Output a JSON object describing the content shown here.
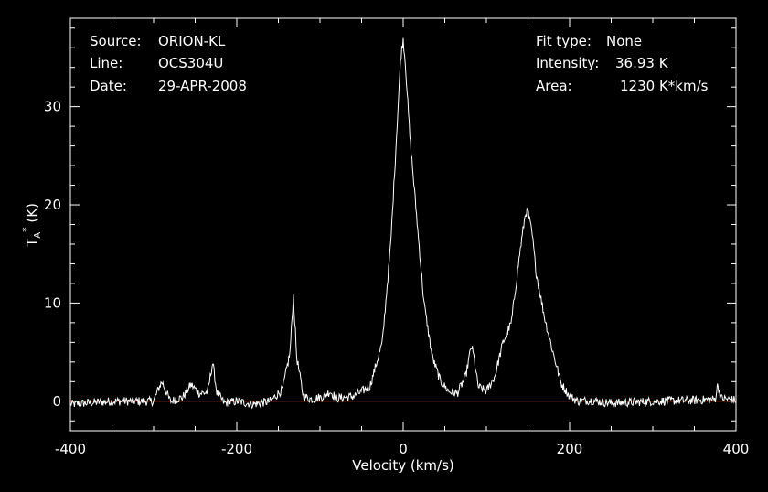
{
  "header": {
    "source_label": "Source:",
    "source_value": "ORION-KL",
    "line_label": "Line:",
    "line_value": "OCS304U",
    "date_label": "Date:",
    "date_value": "29-APR-2008",
    "fit_label": "Fit type:",
    "fit_value": "None",
    "intensity_label": "Intensity:",
    "intensity_value": "36.93 K",
    "area_label": "Area:",
    "area_value": "1230 K*km/s"
  },
  "colors": {
    "background": "#000000",
    "spectrum": "#ffffff",
    "baseline": "#e03030",
    "frame": "#ffffff"
  },
  "chart_data": {
    "type": "line",
    "xlabel": "Velocity (km/s)",
    "ylabel": "T_A^* (K)",
    "xlim": [
      -400,
      400
    ],
    "ylim": [
      -3,
      39
    ],
    "x_ticks": [
      -400,
      -200,
      0,
      200,
      400
    ],
    "y_ticks": [
      0,
      10,
      20,
      30
    ],
    "baseline_y": 0,
    "grid": false,
    "series": [
      {
        "x": [
          -400,
          -350,
          -300,
          -293,
          -290,
          -280,
          -265,
          -255,
          -245,
          -235,
          -229,
          -224,
          -215,
          -200,
          -180,
          -160,
          -145,
          -136,
          -132,
          -128,
          -120,
          -110,
          -95,
          -88,
          -80,
          -60,
          -40,
          -25,
          -15,
          -8,
          -3,
          0,
          3,
          8,
          15,
          25,
          35,
          45,
          55,
          65,
          75,
          82,
          85,
          90,
          100,
          110,
          120,
          130,
          140,
          147,
          150,
          155,
          160,
          170,
          180,
          190,
          200,
          210,
          225,
          250,
          300,
          350,
          375,
          378,
          382,
          400
        ],
        "y": [
          -0.3,
          0,
          0,
          1.5,
          2,
          0,
          0.4,
          1.7,
          0.8,
          0.9,
          4,
          0.9,
          -0.2,
          0,
          -0.3,
          0,
          1.2,
          5,
          10.7,
          4.5,
          0.5,
          0.2,
          0.5,
          1,
          0.3,
          0.5,
          1.5,
          6,
          16,
          27,
          35,
          36.9,
          34,
          27,
          20,
          10,
          4.5,
          2,
          1,
          0.8,
          2.5,
          5.7,
          4.5,
          1.5,
          1,
          2.5,
          6,
          8,
          15,
          19.2,
          19.3,
          17,
          13,
          8.5,
          5,
          1.8,
          0.5,
          0,
          0.1,
          -0.2,
          0,
          0.1,
          0.2,
          1.7,
          0.3,
          0.1
        ]
      }
    ]
  }
}
